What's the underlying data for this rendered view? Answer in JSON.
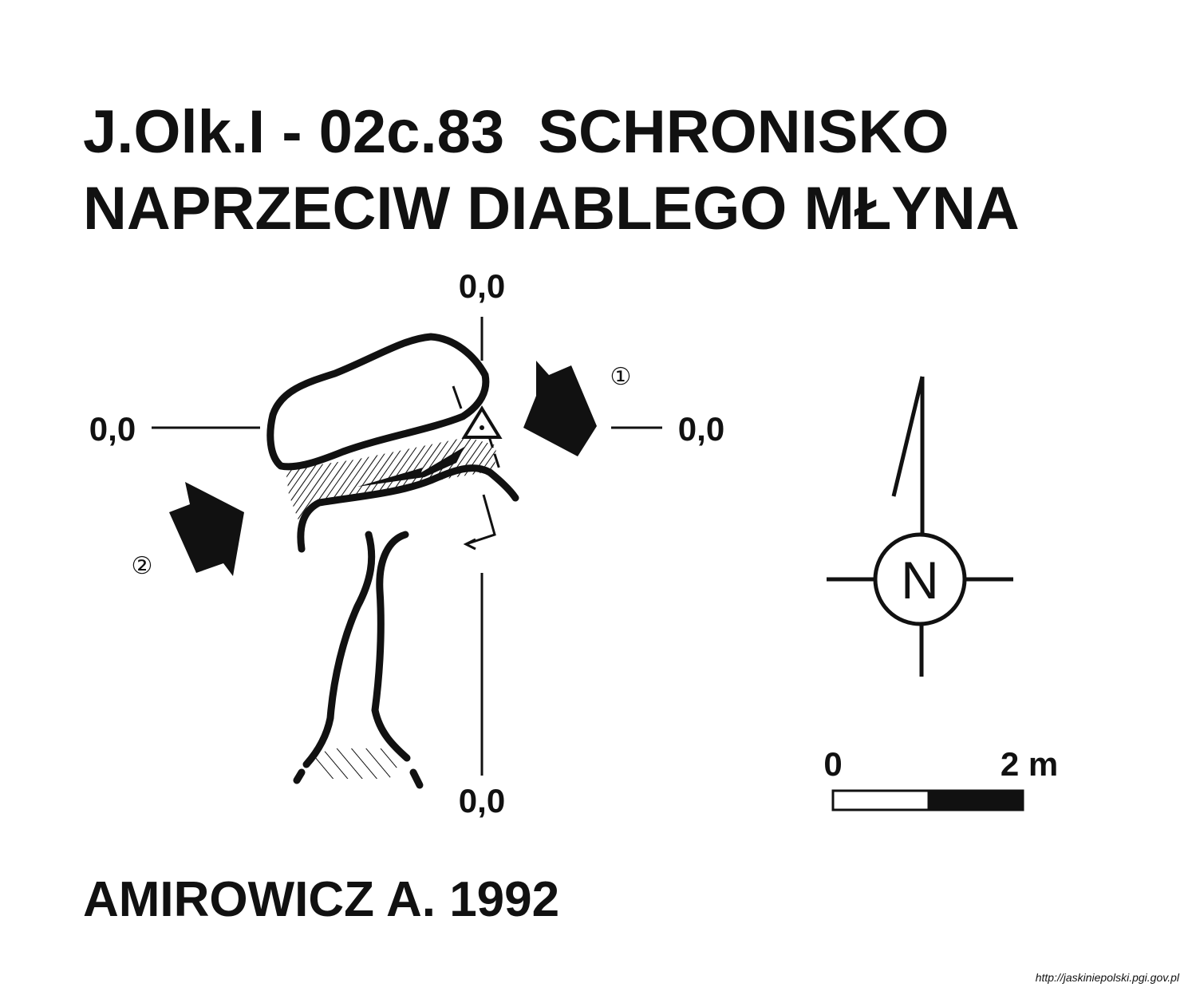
{
  "title": {
    "line1": "J.Olk.I - 02c.83  SCHRONISKO",
    "line2": "NAPRZECIW DIABLEGO MŁYNA"
  },
  "axes": {
    "top_label": "0,0",
    "left_label": "0,0",
    "right_label": "0,0",
    "bottom_label": "0,0"
  },
  "entrances": {
    "entrance_1_label": "①",
    "entrance_2_label": "②"
  },
  "compass": {
    "letter": "N"
  },
  "scale_bar": {
    "start_label": "0",
    "end_label": "2 m"
  },
  "author": "AMIROWICZ A. 1992",
  "source": "http://jaskiniepolski.pgi.gov.pl"
}
